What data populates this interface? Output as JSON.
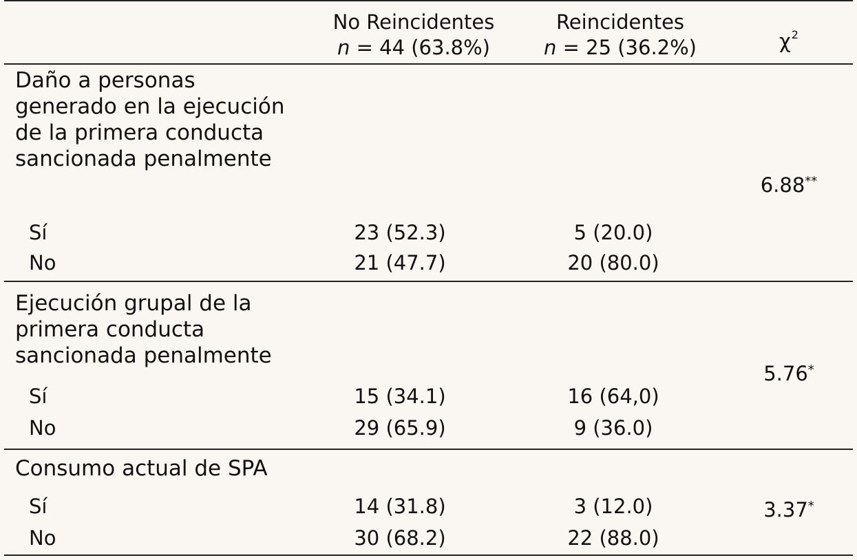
{
  "header": {
    "col1_name": "No Reincidentes",
    "col1_n_label": "n",
    "col1_n_value": "= 44 (63.8%)",
    "col2_name": "Reincidentes",
    "col2_n_label": "n",
    "col2_n_value": "= 25 (36.2%)",
    "col3_symbol": "χ",
    "col3_exp": "2"
  },
  "groups": [
    {
      "label": "Daño a personas generado en la ejecución de la primera conducta sancionada penalmente",
      "chi_value": "6.88",
      "chi_sig": "**",
      "rows": [
        {
          "option": "Sí",
          "no_reincidentes": "23 (52.3)",
          "reincidentes": "5 (20.0)"
        },
        {
          "option": "No",
          "no_reincidentes": "21 (47.7)",
          "reincidentes": "20 (80.0)"
        }
      ]
    },
    {
      "label": "Ejecución grupal de la primera conducta sancionada penalmente",
      "chi_value": "5.76",
      "chi_sig": "*",
      "rows": [
        {
          "option": "Sí",
          "no_reincidentes": "15 (34.1)",
          "reincidentes": "16 (64,0)"
        },
        {
          "option": "No",
          "no_reincidentes": "29 (65.9)",
          "reincidentes": "9 (36.0)"
        }
      ]
    },
    {
      "label": "Consumo actual de SPA",
      "chi_value": "3.37",
      "chi_sig": "*",
      "rows": [
        {
          "option": "Sí",
          "no_reincidentes": "14 (31.8)",
          "reincidentes": "3 (12.0)"
        },
        {
          "option": "No",
          "no_reincidentes": "30 (68.2)",
          "reincidentes": "22 (88.0)"
        }
      ]
    }
  ]
}
